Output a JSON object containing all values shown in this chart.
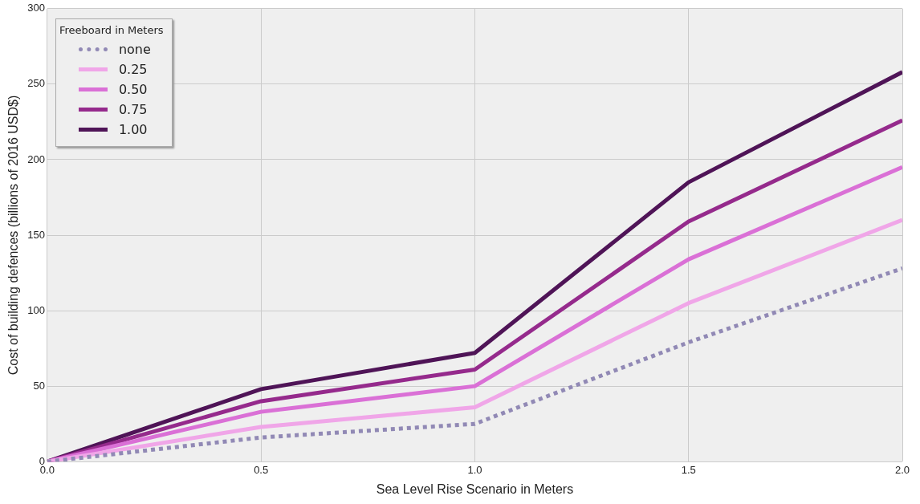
{
  "chart_data": {
    "type": "line",
    "xlabel": "Sea Level Rise Scenario in Meters",
    "ylabel": "Cost of building defences (billions of 2016 USD$)",
    "legend_title": "Freeboard in Meters",
    "x": [
      0,
      0.5,
      1,
      1.5,
      2
    ],
    "series": [
      {
        "name": "none",
        "color": "#9189b5",
        "line_style": "dotted",
        "values": [
          0,
          16,
          25,
          79,
          128
        ]
      },
      {
        "name": "0.25",
        "color": "#f0a6e8",
        "line_style": "solid",
        "values": [
          0,
          23,
          36,
          105,
          160
        ]
      },
      {
        "name": "0.50",
        "color": "#da70d6",
        "line_style": "solid",
        "values": [
          0,
          33,
          50,
          134,
          195
        ]
      },
      {
        "name": "0.75",
        "color": "#952a8c",
        "line_style": "solid",
        "values": [
          0,
          40,
          61,
          159,
          226
        ]
      },
      {
        "name": "1.00",
        "color": "#4f1457",
        "line_style": "solid",
        "values": [
          0,
          48,
          72,
          185,
          258
        ]
      }
    ],
    "xlim": [
      0,
      2
    ],
    "xticks": [
      {
        "value": 0,
        "label": "0.0"
      },
      {
        "value": 0.5,
        "label": "0.5"
      },
      {
        "value": 1,
        "label": "1.0"
      },
      {
        "value": 1.5,
        "label": "1.5"
      },
      {
        "value": 2,
        "label": "2.0"
      }
    ],
    "ylim": [
      0,
      300
    ],
    "yticks": [
      0,
      50,
      100,
      150,
      200,
      250,
      300
    ],
    "grid": true,
    "legend": "top left",
    "marker": "none"
  }
}
